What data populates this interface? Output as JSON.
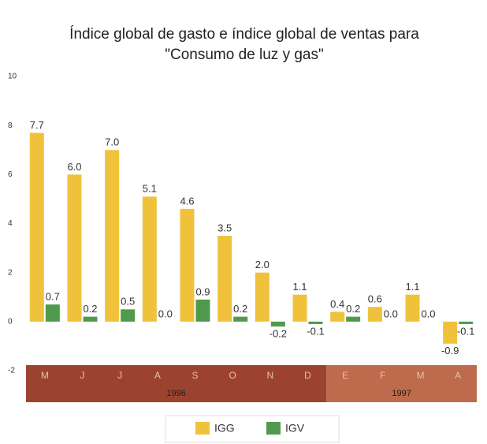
{
  "chart_data": {
    "type": "bar",
    "title": [
      "Índice global de gasto e índice global de ventas para",
      "\"Consumo de luz y gas\""
    ],
    "categories": [
      "M",
      "J",
      "J",
      "A",
      "S",
      "O",
      "N",
      "D",
      "E",
      "F",
      "M",
      "A"
    ],
    "groups": [
      {
        "label": "1996",
        "count": 8,
        "color": "#9c4330"
      },
      {
        "label": "1997",
        "count": 4,
        "color": "#bd6b4c"
      }
    ],
    "series": [
      {
        "name": "IGG",
        "color": "#f0c23c",
        "values": [
          7.7,
          6.0,
          7.0,
          5.1,
          4.6,
          3.5,
          2.0,
          1.1,
          0.4,
          0.6,
          1.1,
          -0.9
        ],
        "value_labels": [
          "7.7",
          "6.0",
          "7.0",
          "5.1",
          "4.6",
          "3.5",
          "2.0",
          "1.1",
          "0.4",
          "0.6",
          "1.1",
          "-0.9"
        ]
      },
      {
        "name": "IGV",
        "color": "#4f9a4c",
        "values": [
          0.7,
          0.2,
          0.5,
          0.0,
          0.9,
          0.2,
          -0.2,
          -0.1,
          0.2,
          0.0,
          0.0,
          -0.1
        ],
        "value_labels": [
          "0.7",
          "0.2",
          "0.5",
          "0.0",
          "0.9",
          "0.2",
          "-0.2",
          "-0.1",
          "0.2",
          "0.0",
          "0.0",
          "-0.1"
        ]
      }
    ],
    "ylim": [
      -2,
      10
    ],
    "yticks": [
      -2,
      0,
      2,
      4,
      6,
      8,
      10
    ],
    "grid": false,
    "legend": "bottom"
  }
}
